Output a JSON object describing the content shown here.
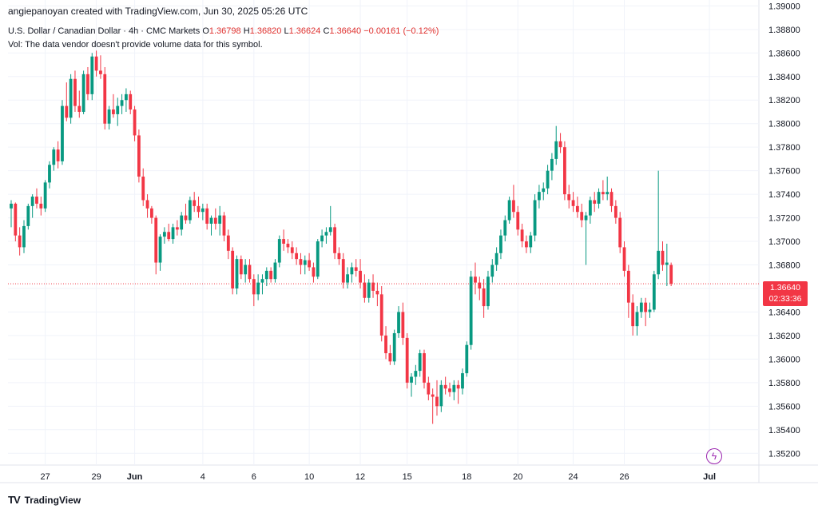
{
  "credit": "angiepanoyan created with TradingView.com, Jun 30, 2025 05:26 UTC",
  "symbol_line": {
    "title": "U.S. Dollar / Canadian Dollar · 4h · CMC Markets",
    "o_label": "O",
    "o_value": "1.36798",
    "h_label": "H",
    "h_value": "1.36820",
    "l_label": "L",
    "l_value": "1.36624",
    "c_label": "C",
    "c_value": "1.36640",
    "change": "−0.00161 (−0.12%)"
  },
  "vol_note": "Vol: The data vendor doesn't provide volume data for this symbol.",
  "brand": {
    "logo": "𝟏𝟕",
    "name": "TradingView"
  },
  "last_price_tag": {
    "price": "1.36640",
    "countdown": "02:33:36"
  },
  "icons": {
    "lightning": "lightning-icon"
  },
  "colors": {
    "up": "#089981",
    "down": "#f23645",
    "grid": "#f0f3fa",
    "price_line": "#f23645"
  },
  "chart_data": {
    "type": "candlestick",
    "title": "U.S. Dollar / Canadian Dollar · 4h · CMC Markets",
    "ylim": [
      1.351,
      1.3905
    ],
    "y_ticks": [
      1.352,
      1.354,
      1.356,
      1.358,
      1.36,
      1.362,
      1.364,
      1.366,
      1.368,
      1.37,
      1.372,
      1.374,
      1.376,
      1.378,
      1.38,
      1.382,
      1.384,
      1.386,
      1.388,
      1.39
    ],
    "y_tick_labels": [
      "1.35200",
      "1.35400",
      "1.35600",
      "1.35800",
      "1.36000",
      "1.36200",
      "1.36400",
      "1.36600",
      "1.36800",
      "1.37000",
      "1.37200",
      "1.37400",
      "1.37600",
      "1.37800",
      "1.38000",
      "1.38200",
      "1.38400",
      "1.38600",
      "1.38800",
      "1.39000"
    ],
    "x_ticks": [
      {
        "label": "27",
        "index": 8
      },
      {
        "label": "29",
        "index": 20
      },
      {
        "label": "Jun",
        "index": 29
      },
      {
        "label": "4",
        "index": 45
      },
      {
        "label": "6",
        "index": 57
      },
      {
        "label": "10",
        "index": 70
      },
      {
        "label": "12",
        "index": 82
      },
      {
        "label": "15",
        "index": 93
      },
      {
        "label": "18",
        "index": 107
      },
      {
        "label": "20",
        "index": 119
      },
      {
        "label": "24",
        "index": 132
      },
      {
        "label": "26",
        "index": 144
      },
      {
        "label": "Jul",
        "index": 164
      }
    ],
    "current_price": 1.3664,
    "candles": [
      [
        1.3728,
        1.3735,
        1.3712,
        1.3732
      ],
      [
        1.3732,
        1.3733,
        1.37,
        1.3705
      ],
      [
        1.3705,
        1.3712,
        1.3688,
        1.3695
      ],
      [
        1.3695,
        1.3718,
        1.369,
        1.3713
      ],
      [
        1.3713,
        1.3732,
        1.371,
        1.373
      ],
      [
        1.373,
        1.374,
        1.372,
        1.3738
      ],
      [
        1.3738,
        1.3745,
        1.3728,
        1.3732
      ],
      [
        1.3732,
        1.3738,
        1.3722,
        1.3728
      ],
      [
        1.3728,
        1.3752,
        1.3725,
        1.375
      ],
      [
        1.375,
        1.3768,
        1.3745,
        1.3765
      ],
      [
        1.3765,
        1.378,
        1.376,
        1.3778
      ],
      [
        1.3778,
        1.3785,
        1.3762,
        1.3768
      ],
      [
        1.3768,
        1.382,
        1.3765,
        1.3815
      ],
      [
        1.3815,
        1.3835,
        1.3802,
        1.3805
      ],
      [
        1.3805,
        1.3842,
        1.38,
        1.3838
      ],
      [
        1.3838,
        1.3845,
        1.381,
        1.3815
      ],
      [
        1.3815,
        1.3828,
        1.3805,
        1.381
      ],
      [
        1.381,
        1.3845,
        1.3808,
        1.3842
      ],
      [
        1.3842,
        1.3848,
        1.382,
        1.3825
      ],
      [
        1.3825,
        1.386,
        1.382,
        1.3857
      ],
      [
        1.3857,
        1.3862,
        1.384,
        1.3845
      ],
      [
        1.3845,
        1.3858,
        1.3838,
        1.3842
      ],
      [
        1.3842,
        1.3848,
        1.3795,
        1.38
      ],
      [
        1.38,
        1.3815,
        1.3795,
        1.3812
      ],
      [
        1.3812,
        1.3825,
        1.3805,
        1.3808
      ],
      [
        1.3808,
        1.3822,
        1.3798,
        1.3815
      ],
      [
        1.3815,
        1.3825,
        1.3808,
        1.382
      ],
      [
        1.382,
        1.383,
        1.381,
        1.3825
      ],
      [
        1.3825,
        1.3828,
        1.3808,
        1.3812
      ],
      [
        1.3812,
        1.3815,
        1.3785,
        1.379
      ],
      [
        1.379,
        1.3795,
        1.375,
        1.3755
      ],
      [
        1.3755,
        1.3762,
        1.373,
        1.3735
      ],
      [
        1.3735,
        1.374,
        1.372,
        1.3728
      ],
      [
        1.3728,
        1.373,
        1.3715,
        1.372
      ],
      [
        1.372,
        1.3722,
        1.3672,
        1.3682
      ],
      [
        1.3682,
        1.3706,
        1.3675,
        1.3704
      ],
      [
        1.3704,
        1.3712,
        1.3698,
        1.3708
      ],
      [
        1.3708,
        1.3715,
        1.37,
        1.3702
      ],
      [
        1.3702,
        1.3715,
        1.3698,
        1.3712
      ],
      [
        1.3712,
        1.3718,
        1.3705,
        1.371
      ],
      [
        1.371,
        1.3725,
        1.3705,
        1.3722
      ],
      [
        1.3722,
        1.3732,
        1.3715,
        1.3718
      ],
      [
        1.3718,
        1.3738,
        1.3715,
        1.3735
      ],
      [
        1.3735,
        1.3742,
        1.3725,
        1.373
      ],
      [
        1.373,
        1.3738,
        1.372,
        1.3725
      ],
      [
        1.3725,
        1.3732,
        1.3718,
        1.3728
      ],
      [
        1.3728,
        1.3732,
        1.371,
        1.3715
      ],
      [
        1.3715,
        1.3722,
        1.3705,
        1.372
      ],
      [
        1.372,
        1.3728,
        1.371,
        1.3715
      ],
      [
        1.3715,
        1.373,
        1.3705,
        1.3722
      ],
      [
        1.3722,
        1.3725,
        1.37,
        1.3705
      ],
      [
        1.3705,
        1.371,
        1.3685,
        1.3692
      ],
      [
        1.3692,
        1.3695,
        1.3655,
        1.366
      ],
      [
        1.366,
        1.3688,
        1.3655,
        1.3685
      ],
      [
        1.3685,
        1.3688,
        1.3668,
        1.3672
      ],
      [
        1.3672,
        1.3685,
        1.3665,
        1.368
      ],
      [
        1.368,
        1.3685,
        1.3665,
        1.3668
      ],
      [
        1.3668,
        1.3672,
        1.3645,
        1.3655
      ],
      [
        1.3655,
        1.3672,
        1.365,
        1.3665
      ],
      [
        1.3665,
        1.3672,
        1.3655,
        1.3668
      ],
      [
        1.3668,
        1.3678,
        1.3662,
        1.3675
      ],
      [
        1.3675,
        1.3678,
        1.3665,
        1.3668
      ],
      [
        1.3668,
        1.3685,
        1.3665,
        1.3682
      ],
      [
        1.3682,
        1.3705,
        1.3678,
        1.3702
      ],
      [
        1.3702,
        1.371,
        1.3692,
        1.3698
      ],
      [
        1.3698,
        1.3702,
        1.369,
        1.3695
      ],
      [
        1.3695,
        1.37,
        1.3685,
        1.369
      ],
      [
        1.369,
        1.3695,
        1.368,
        1.3685
      ],
      [
        1.3685,
        1.369,
        1.3672,
        1.368
      ],
      [
        1.368,
        1.3688,
        1.3672,
        1.3684
      ],
      [
        1.3684,
        1.369,
        1.3675,
        1.3678
      ],
      [
        1.3678,
        1.3682,
        1.3665,
        1.367
      ],
      [
        1.367,
        1.3702,
        1.3668,
        1.37
      ],
      [
        1.37,
        1.371,
        1.3695,
        1.3705
      ],
      [
        1.3705,
        1.3712,
        1.3698,
        1.3708
      ],
      [
        1.3708,
        1.373,
        1.3705,
        1.3712
      ],
      [
        1.3712,
        1.3715,
        1.3685,
        1.369
      ],
      [
        1.369,
        1.3695,
        1.368,
        1.3685
      ],
      [
        1.3685,
        1.369,
        1.366,
        1.3665
      ],
      [
        1.3665,
        1.3678,
        1.366,
        1.3672
      ],
      [
        1.3672,
        1.3682,
        1.3665,
        1.3678
      ],
      [
        1.3678,
        1.3685,
        1.367,
        1.3675
      ],
      [
        1.3675,
        1.3685,
        1.366,
        1.3665
      ],
      [
        1.3665,
        1.3672,
        1.3648,
        1.3652
      ],
      [
        1.3652,
        1.3668,
        1.3648,
        1.3665
      ],
      [
        1.3665,
        1.3672,
        1.3652,
        1.3658
      ],
      [
        1.3658,
        1.3665,
        1.3645,
        1.3655
      ],
      [
        1.3655,
        1.3662,
        1.3615,
        1.362
      ],
      [
        1.362,
        1.3628,
        1.36,
        1.3605
      ],
      [
        1.3605,
        1.3612,
        1.3595,
        1.3598
      ],
      [
        1.3598,
        1.3625,
        1.3595,
        1.3622
      ],
      [
        1.3622,
        1.3645,
        1.3618,
        1.364
      ],
      [
        1.364,
        1.3648,
        1.3612,
        1.3618
      ],
      [
        1.3618,
        1.3622,
        1.3575,
        1.358
      ],
      [
        1.358,
        1.3588,
        1.3568,
        1.3585
      ],
      [
        1.3585,
        1.3595,
        1.3578,
        1.359
      ],
      [
        1.359,
        1.3608,
        1.3585,
        1.3605
      ],
      [
        1.3605,
        1.3608,
        1.3575,
        1.358
      ],
      [
        1.358,
        1.3585,
        1.3565,
        1.357
      ],
      [
        1.357,
        1.3575,
        1.3545,
        1.3568
      ],
      [
        1.3568,
        1.3582,
        1.3552,
        1.356
      ],
      [
        1.356,
        1.3582,
        1.3555,
        1.3578
      ],
      [
        1.3578,
        1.3585,
        1.357,
        1.3575
      ],
      [
        1.3575,
        1.358,
        1.3568,
        1.3572
      ],
      [
        1.3572,
        1.3582,
        1.3565,
        1.3578
      ],
      [
        1.3578,
        1.3582,
        1.3562,
        1.3575
      ],
      [
        1.3575,
        1.3592,
        1.357,
        1.3588
      ],
      [
        1.3588,
        1.3615,
        1.3585,
        1.3612
      ],
      [
        1.3612,
        1.3675,
        1.3608,
        1.367
      ],
      [
        1.367,
        1.3682,
        1.3655,
        1.3665
      ],
      [
        1.3665,
        1.367,
        1.365,
        1.366
      ],
      [
        1.366,
        1.3668,
        1.3635,
        1.3645
      ],
      [
        1.3645,
        1.3675,
        1.3642,
        1.367
      ],
      [
        1.367,
        1.3685,
        1.3665,
        1.368
      ],
      [
        1.368,
        1.3695,
        1.3675,
        1.369
      ],
      [
        1.369,
        1.371,
        1.3685,
        1.3705
      ],
      [
        1.3705,
        1.3722,
        1.37,
        1.3718
      ],
      [
        1.3718,
        1.3738,
        1.3715,
        1.3735
      ],
      [
        1.3735,
        1.3748,
        1.372,
        1.3725
      ],
      [
        1.3725,
        1.373,
        1.3705,
        1.371
      ],
      [
        1.371,
        1.3715,
        1.3695,
        1.37
      ],
      [
        1.37,
        1.3705,
        1.369,
        1.3695
      ],
      [
        1.3695,
        1.3708,
        1.369,
        1.3705
      ],
      [
        1.3705,
        1.374,
        1.37,
        1.3735
      ],
      [
        1.3735,
        1.3748,
        1.3728,
        1.3742
      ],
      [
        1.3742,
        1.375,
        1.3735,
        1.3745
      ],
      [
        1.3745,
        1.3765,
        1.374,
        1.376
      ],
      [
        1.376,
        1.3775,
        1.3752,
        1.377
      ],
      [
        1.377,
        1.3798,
        1.3765,
        1.3785
      ],
      [
        1.3785,
        1.3792,
        1.3775,
        1.378
      ],
      [
        1.378,
        1.3785,
        1.3735,
        1.374
      ],
      [
        1.374,
        1.3748,
        1.3728,
        1.3735
      ],
      [
        1.3735,
        1.3742,
        1.3725,
        1.373
      ],
      [
        1.373,
        1.3738,
        1.372,
        1.3725
      ],
      [
        1.3725,
        1.3732,
        1.3712,
        1.3718
      ],
      [
        1.3718,
        1.3725,
        1.368,
        1.3722
      ],
      [
        1.3722,
        1.3738,
        1.3715,
        1.3735
      ],
      [
        1.3735,
        1.3742,
        1.3725,
        1.3732
      ],
      [
        1.3732,
        1.3745,
        1.3728,
        1.3742
      ],
      [
        1.3742,
        1.3752,
        1.3735,
        1.374
      ],
      [
        1.374,
        1.3755,
        1.3735,
        1.3742
      ],
      [
        1.3742,
        1.3745,
        1.3725,
        1.373
      ],
      [
        1.373,
        1.3735,
        1.3715,
        1.372
      ],
      [
        1.372,
        1.3725,
        1.369,
        1.3695
      ],
      [
        1.3695,
        1.37,
        1.367,
        1.3675
      ],
      [
        1.3675,
        1.368,
        1.3635,
        1.3648
      ],
      [
        1.3648,
        1.3655,
        1.362,
        1.3628
      ],
      [
        1.3628,
        1.3645,
        1.362,
        1.364
      ],
      [
        1.364,
        1.3652,
        1.3635,
        1.3648
      ],
      [
        1.3648,
        1.3652,
        1.3628,
        1.364
      ],
      [
        1.364,
        1.3648,
        1.3635,
        1.3642
      ],
      [
        1.3642,
        1.3675,
        1.364,
        1.3672
      ],
      [
        1.3672,
        1.376,
        1.3668,
        1.3692
      ],
      [
        1.3692,
        1.37,
        1.3675,
        1.368
      ],
      [
        1.368,
        1.3698,
        1.3662,
        1.3682
      ],
      [
        1.368,
        1.3682,
        1.3662,
        1.3664
      ]
    ]
  }
}
